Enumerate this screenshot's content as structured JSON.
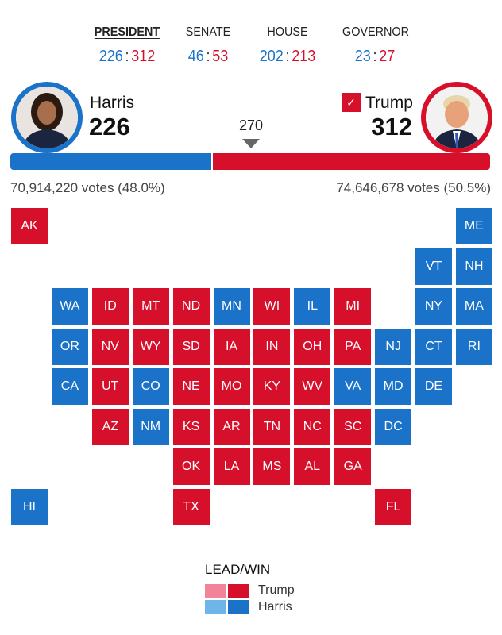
{
  "tabs": [
    {
      "label": "PRESIDENT",
      "active": true,
      "dem": "226",
      "rep": "312"
    },
    {
      "label": "SENATE",
      "active": false,
      "dem": "46",
      "rep": "53"
    },
    {
      "label": "HOUSE",
      "active": false,
      "dem": "202",
      "rep": "213"
    },
    {
      "label": "GOVERNOR",
      "active": false,
      "dem": "23",
      "rep": "27"
    }
  ],
  "colon": ":",
  "harris": {
    "name": "Harris",
    "ev": "226",
    "votes": "70,914,220 votes (48.0%)",
    "color": "#1a73c8"
  },
  "trump": {
    "name": "Trump",
    "ev": "312",
    "votes": "74,646,678 votes (50.5%)",
    "color": "#d6102b",
    "winner_check": "✓"
  },
  "threshold": "270",
  "total_ev": 538,
  "states": [
    {
      "abbr": "AK",
      "party": "R"
    },
    {
      "abbr": "ME",
      "party": "D"
    },
    {
      "abbr": "VT",
      "party": "D"
    },
    {
      "abbr": "NH",
      "party": "D"
    },
    {
      "abbr": "WA",
      "party": "D"
    },
    {
      "abbr": "ID",
      "party": "R"
    },
    {
      "abbr": "MT",
      "party": "R"
    },
    {
      "abbr": "ND",
      "party": "R"
    },
    {
      "abbr": "MN",
      "party": "D"
    },
    {
      "abbr": "WI",
      "party": "R"
    },
    {
      "abbr": "IL",
      "party": "D"
    },
    {
      "abbr": "MI",
      "party": "R"
    },
    {
      "abbr": "NY",
      "party": "D"
    },
    {
      "abbr": "MA",
      "party": "D"
    },
    {
      "abbr": "OR",
      "party": "D"
    },
    {
      "abbr": "NV",
      "party": "R"
    },
    {
      "abbr": "WY",
      "party": "R"
    },
    {
      "abbr": "SD",
      "party": "R"
    },
    {
      "abbr": "IA",
      "party": "R"
    },
    {
      "abbr": "IN",
      "party": "R"
    },
    {
      "abbr": "OH",
      "party": "R"
    },
    {
      "abbr": "PA",
      "party": "R"
    },
    {
      "abbr": "NJ",
      "party": "D"
    },
    {
      "abbr": "CT",
      "party": "D"
    },
    {
      "abbr": "RI",
      "party": "D"
    },
    {
      "abbr": "CA",
      "party": "D"
    },
    {
      "abbr": "UT",
      "party": "R"
    },
    {
      "abbr": "CO",
      "party": "D"
    },
    {
      "abbr": "NE",
      "party": "R"
    },
    {
      "abbr": "MO",
      "party": "R"
    },
    {
      "abbr": "KY",
      "party": "R"
    },
    {
      "abbr": "WV",
      "party": "R"
    },
    {
      "abbr": "VA",
      "party": "D"
    },
    {
      "abbr": "MD",
      "party": "D"
    },
    {
      "abbr": "DE",
      "party": "D"
    },
    {
      "abbr": "AZ",
      "party": "R"
    },
    {
      "abbr": "NM",
      "party": "D"
    },
    {
      "abbr": "KS",
      "party": "R"
    },
    {
      "abbr": "AR",
      "party": "R"
    },
    {
      "abbr": "TN",
      "party": "R"
    },
    {
      "abbr": "NC",
      "party": "R"
    },
    {
      "abbr": "SC",
      "party": "R"
    },
    {
      "abbr": "DC",
      "party": "D"
    },
    {
      "abbr": "OK",
      "party": "R"
    },
    {
      "abbr": "LA",
      "party": "R"
    },
    {
      "abbr": "MS",
      "party": "R"
    },
    {
      "abbr": "AL",
      "party": "R"
    },
    {
      "abbr": "GA",
      "party": "R"
    },
    {
      "abbr": "HI",
      "party": "D"
    },
    {
      "abbr": "TX",
      "party": "R"
    },
    {
      "abbr": "FL",
      "party": "R"
    }
  ],
  "legend": {
    "title": "LEAD/WIN",
    "trump": "Trump",
    "harris": "Harris",
    "trump_lead": "#f2849a",
    "trump_win": "#d6102b",
    "harris_lead": "#6fb6e8",
    "harris_win": "#1a73c8"
  }
}
